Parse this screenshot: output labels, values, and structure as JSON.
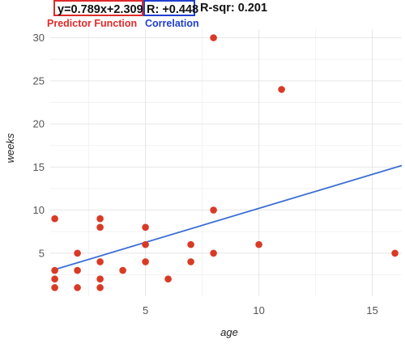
{
  "header": {
    "function_text": "y=0.789x+2.309",
    "function_caption": "Predictor Function",
    "r_text": "R: +0.448",
    "r_caption": "Correlation",
    "rsq_text": "R-sqr: 0.201"
  },
  "colors": {
    "point": "#d93a25",
    "line": "#3b6fd4",
    "function_box": "#e02a2a",
    "correlation_box": "#1f3fd0",
    "grid_major": "#e6e6e6",
    "grid_minor": "#f3f3f3"
  },
  "chart_data": {
    "type": "scatter",
    "xlabel": "age",
    "ylabel": "weeks",
    "xlim": [
      0.8,
      16.3
    ],
    "ylim": [
      0,
      31
    ],
    "x_ticks": [
      5,
      10,
      15
    ],
    "y_ticks": [
      5,
      10,
      15,
      20,
      25,
      30
    ],
    "grid": true,
    "points": [
      {
        "x": 1,
        "y": 9
      },
      {
        "x": 1,
        "y": 3
      },
      {
        "x": 1,
        "y": 2
      },
      {
        "x": 1,
        "y": 1
      },
      {
        "x": 2,
        "y": 5
      },
      {
        "x": 2,
        "y": 3
      },
      {
        "x": 2,
        "y": 1
      },
      {
        "x": 3,
        "y": 9
      },
      {
        "x": 3,
        "y": 8
      },
      {
        "x": 3,
        "y": 4
      },
      {
        "x": 3,
        "y": 2
      },
      {
        "x": 3,
        "y": 1
      },
      {
        "x": 4,
        "y": 3
      },
      {
        "x": 5,
        "y": 8
      },
      {
        "x": 5,
        "y": 6
      },
      {
        "x": 5,
        "y": 4
      },
      {
        "x": 6,
        "y": 2
      },
      {
        "x": 7,
        "y": 6
      },
      {
        "x": 7,
        "y": 4
      },
      {
        "x": 8,
        "y": 30
      },
      {
        "x": 8,
        "y": 10
      },
      {
        "x": 8,
        "y": 5
      },
      {
        "x": 10,
        "y": 6
      },
      {
        "x": 11,
        "y": 24
      },
      {
        "x": 16,
        "y": 5
      }
    ],
    "fit": {
      "slope": 0.789,
      "intercept": 2.309
    }
  }
}
